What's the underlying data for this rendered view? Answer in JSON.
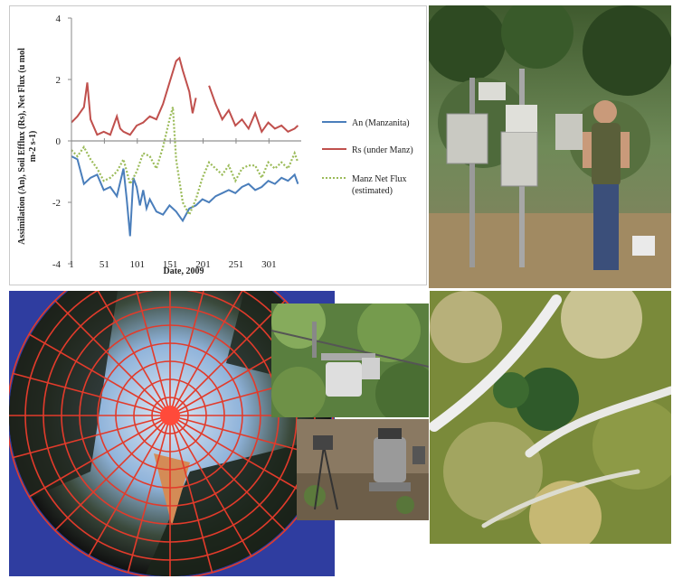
{
  "chart_data": {
    "type": "line",
    "ylabel": "Assimilation (An), Soil Efflux (Rs), Net Flux (u mol m-2 s-1)",
    "xlabel": "Date, 2009",
    "xlim": [
      1,
      350
    ],
    "ylim": [
      -4,
      4
    ],
    "x_ticks": [
      1,
      51,
      101,
      151,
      201,
      251,
      301
    ],
    "y_ticks": [
      4,
      2,
      0,
      -2,
      -4
    ],
    "legend_position": "right",
    "colors": {
      "an": "#4a7ebb",
      "rs": "#c0504d",
      "net": "#9bbb59"
    },
    "series": [
      {
        "name": "An (Manzanita)",
        "key": "an",
        "style": "solid",
        "x": [
          1,
          10,
          20,
          30,
          40,
          50,
          60,
          70,
          80,
          85,
          90,
          95,
          100,
          105,
          110,
          115,
          120,
          130,
          140,
          150,
          160,
          170,
          175,
          180,
          190,
          200,
          210,
          220,
          230,
          240,
          250,
          260,
          270,
          280,
          290,
          300,
          310,
          320,
          330,
          340,
          345
        ],
        "y": [
          -0.5,
          -0.6,
          -1.4,
          -1.2,
          -1.1,
          -1.6,
          -1.5,
          -1.8,
          -0.9,
          -1.9,
          -3.1,
          -1.2,
          -1.5,
          -2.1,
          -1.6,
          -2.2,
          -1.9,
          -2.3,
          -2.4,
          -2.1,
          -2.3,
          -2.6,
          -2.4,
          -2.2,
          -2.1,
          -1.9,
          -2.0,
          -1.8,
          -1.7,
          -1.6,
          -1.7,
          -1.5,
          -1.4,
          -1.6,
          -1.5,
          -1.3,
          -1.4,
          -1.2,
          -1.3,
          -1.1,
          -1.4
        ]
      },
      {
        "name": "Rs (under Manz)",
        "key": "rs",
        "style": "solid",
        "x": [
          1,
          10,
          20,
          25,
          30,
          40,
          50,
          60,
          70,
          75,
          80,
          90,
          100,
          110,
          120,
          130,
          140,
          150,
          160,
          165,
          170,
          180,
          185,
          190,
          200,
          210,
          220,
          230,
          240,
          250,
          260,
          270,
          280,
          290,
          300,
          310,
          320,
          330,
          340,
          345
        ],
        "y": [
          0.6,
          0.8,
          1.1,
          1.9,
          0.7,
          0.2,
          0.3,
          0.2,
          0.8,
          0.4,
          0.3,
          0.2,
          0.5,
          0.6,
          0.8,
          0.7,
          1.2,
          1.9,
          2.6,
          2.7,
          2.3,
          1.6,
          0.9,
          1.4,
          null,
          1.8,
          1.2,
          0.7,
          1.0,
          0.5,
          0.7,
          0.4,
          0.9,
          0.3,
          0.6,
          0.4,
          0.5,
          0.3,
          0.4,
          0.5
        ]
      },
      {
        "name": "Manz Net Flux (estimated)",
        "key": "net",
        "style": "dotted",
        "x": [
          1,
          10,
          20,
          30,
          40,
          50,
          60,
          70,
          80,
          90,
          100,
          110,
          120,
          130,
          140,
          150,
          155,
          160,
          170,
          180,
          190,
          200,
          210,
          220,
          230,
          240,
          250,
          260,
          270,
          280,
          290,
          300,
          310,
          320,
          330,
          340,
          345
        ],
        "y": [
          -0.3,
          -0.5,
          -0.2,
          -0.6,
          -0.9,
          -1.3,
          -1.2,
          -1.0,
          -0.6,
          -1.4,
          -1.0,
          -0.4,
          -0.5,
          -0.9,
          -0.2,
          0.7,
          1.1,
          -0.6,
          -2.0,
          -2.4,
          -1.9,
          -1.2,
          -0.7,
          -0.9,
          -1.1,
          -0.8,
          -1.3,
          -0.9,
          -0.8,
          -0.8,
          -1.2,
          -0.7,
          -0.9,
          -0.7,
          -0.9,
          -0.4,
          -0.7
        ]
      }
    ]
  }
}
